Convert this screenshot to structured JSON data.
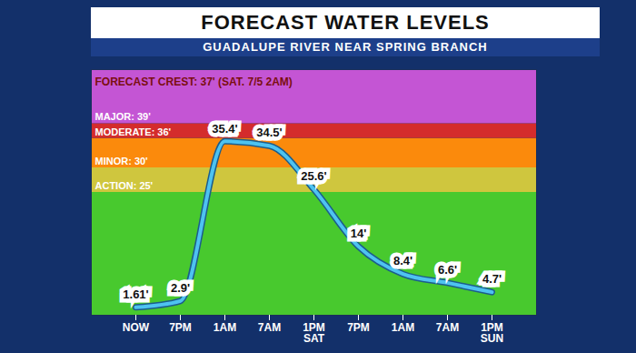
{
  "chart_data": {
    "type": "line",
    "title": "FORECAST WATER LEVELS",
    "subtitle": "GUADALUPE RIVER NEAR SPRING BRANCH",
    "annotation": "FORECAST CREST: 37' (SAT. 7/5 2AM)",
    "categories": [
      "NOW",
      "7PM",
      "1AM",
      "7AM",
      "1PM SAT",
      "7PM",
      "1AM",
      "7AM",
      "1PM SUN"
    ],
    "values": [
      1.61,
      2.9,
      35.4,
      34.5,
      25.6,
      14,
      8.4,
      6.6,
      4.7
    ],
    "value_labels": [
      "1.61'",
      "2.9'",
      "35.4'",
      "34.5'",
      "25.6'",
      "14'",
      "8.4'",
      "6.6'",
      "4.7'"
    ],
    "color": "#4ec3f0",
    "ylim": [
      0,
      50
    ],
    "yticks": [],
    "tick_labels": "x",
    "data_labels": true,
    "bands": [
      {
        "from": 0,
        "to": 25,
        "color": "#48c92e"
      },
      {
        "from": 25,
        "to": 30,
        "color": "#cfc63e",
        "label": "ACTION: 25'"
      },
      {
        "from": 30,
        "to": 36,
        "color": "#fb8a0c",
        "label": "MINOR: 30'"
      },
      {
        "from": 36,
        "to": 39,
        "color": "#d42c2c",
        "label": "MODERATE: 36'"
      },
      {
        "from": 39,
        "to": 50,
        "color": "#c455d4",
        "label": "MAJOR: 39'"
      }
    ]
  }
}
